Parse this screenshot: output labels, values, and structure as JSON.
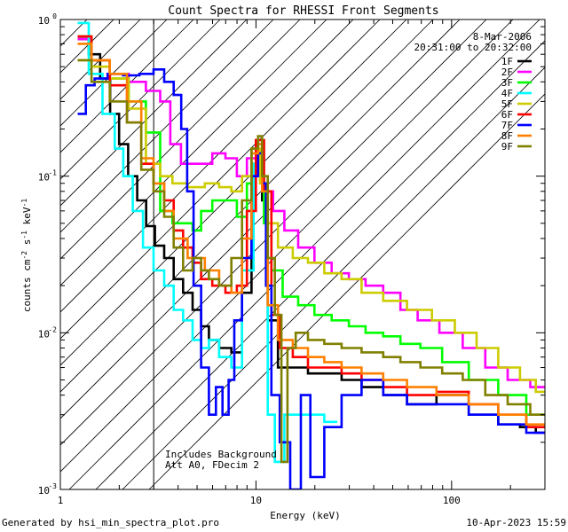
{
  "chart_data": {
    "type": "line",
    "title": "Count Spectra for RHESSI Front Segments",
    "xlabel": "Energy (keV)",
    "ylabel": "counts cm-2 s-1 keV-1",
    "x_scale": "log",
    "y_scale": "log",
    "xlim": [
      1,
      300
    ],
    "ylim": [
      0.001,
      1
    ],
    "x_ticks": [
      {
        "v": 1,
        "label": "1"
      },
      {
        "v": 10,
        "label": "10"
      },
      {
        "v": 100,
        "label": "100"
      }
    ],
    "y_ticks": [
      {
        "v": 1,
        "label": "10",
        "exp": "0"
      },
      {
        "v": 0.1,
        "label": "10",
        "exp": "-1"
      },
      {
        "v": 0.01,
        "label": "10",
        "exp": "-2"
      },
      {
        "v": 0.001,
        "label": "10",
        "exp": "-3"
      }
    ],
    "date": "8-Mar-2006",
    "time_range": "20:31:00 to 20:32:00",
    "annotation_lines": [
      "Includes Background",
      "Att A0, FDecim 2"
    ],
    "hatch_region": [
      1,
      3
    ],
    "legend_position": "top-right",
    "series": [
      {
        "name": "1F",
        "color": "#000000",
        "points": [
          [
            1.3,
            0.75
          ],
          [
            1.5,
            0.6
          ],
          [
            1.7,
            0.42
          ],
          [
            1.9,
            0.25
          ],
          [
            2.1,
            0.16
          ],
          [
            2.35,
            0.1
          ],
          [
            2.6,
            0.07
          ],
          [
            2.9,
            0.048
          ],
          [
            3.2,
            0.036
          ],
          [
            3.6,
            0.03
          ],
          [
            4.0,
            0.022
          ],
          [
            4.5,
            0.018
          ],
          [
            5.0,
            0.014
          ],
          [
            5.5,
            0.011
          ],
          [
            6.0,
            0.009
          ],
          [
            7.0,
            0.008
          ],
          [
            8.0,
            0.0075
          ],
          [
            9.0,
            0.018
          ],
          [
            10.0,
            0.12
          ],
          [
            10.5,
            0.16
          ],
          [
            11.0,
            0.07
          ],
          [
            12.0,
            0.012
          ],
          [
            14,
            0.006
          ],
          [
            17,
            0.006
          ],
          [
            20,
            0.0055
          ],
          [
            25,
            0.0055
          ],
          [
            30,
            0.005
          ],
          [
            40,
            0.0045
          ],
          [
            50,
            0.004
          ],
          [
            70,
            0.0035
          ],
          [
            100,
            0.004
          ],
          [
            150,
            0.003
          ],
          [
            200,
            0.0026
          ],
          [
            250,
            0.0025
          ],
          [
            290,
            0.0023
          ]
        ]
      },
      {
        "name": "2F",
        "color": "#ff00ff",
        "points": [
          [
            1.3,
            0.75
          ],
          [
            1.6,
            0.55
          ],
          [
            2.0,
            0.45
          ],
          [
            2.5,
            0.4
          ],
          [
            3.0,
            0.35
          ],
          [
            3.5,
            0.3
          ],
          [
            3.8,
            0.16
          ],
          [
            4.5,
            0.12
          ],
          [
            5.5,
            0.12
          ],
          [
            6.5,
            0.14
          ],
          [
            7.5,
            0.13
          ],
          [
            8.5,
            0.1
          ],
          [
            9.5,
            0.13
          ],
          [
            10.5,
            0.17
          ],
          [
            11.5,
            0.08
          ],
          [
            13,
            0.06
          ],
          [
            15,
            0.045
          ],
          [
            18,
            0.035
          ],
          [
            22,
            0.028
          ],
          [
            27,
            0.024
          ],
          [
            33,
            0.022
          ],
          [
            40,
            0.02
          ],
          [
            50,
            0.018
          ],
          [
            60,
            0.014
          ],
          [
            75,
            0.012
          ],
          [
            100,
            0.01
          ],
          [
            130,
            0.008
          ],
          [
            170,
            0.006
          ],
          [
            220,
            0.005
          ],
          [
            290,
            0.0045
          ]
        ]
      },
      {
        "name": "3F",
        "color": "#00ff00",
        "points": [
          [
            1.3,
            0.78
          ],
          [
            1.6,
            0.55
          ],
          [
            2.0,
            0.42
          ],
          [
            2.5,
            0.3
          ],
          [
            3.0,
            0.19
          ],
          [
            3.5,
            0.06
          ],
          [
            4.0,
            0.05
          ],
          [
            4.5,
            0.05
          ],
          [
            5.0,
            0.045
          ],
          [
            5.5,
            0.06
          ],
          [
            6.5,
            0.07
          ],
          [
            7.5,
            0.07
          ],
          [
            8.5,
            0.055
          ],
          [
            9.5,
            0.09
          ],
          [
            10.5,
            0.17
          ],
          [
            11.5,
            0.05
          ],
          [
            12.5,
            0.025
          ],
          [
            15,
            0.017
          ],
          [
            18,
            0.015
          ],
          [
            22,
            0.013
          ],
          [
            27,
            0.012
          ],
          [
            33,
            0.011
          ],
          [
            40,
            0.01
          ],
          [
            50,
            0.0095
          ],
          [
            60,
            0.0085
          ],
          [
            80,
            0.008
          ],
          [
            100,
            0.0065
          ],
          [
            150,
            0.005
          ],
          [
            200,
            0.004
          ],
          [
            290,
            0.003
          ]
        ]
      },
      {
        "name": "4F",
        "color": "#00ffff",
        "points": [
          [
            1.3,
            0.95
          ],
          [
            1.5,
            0.45
          ],
          [
            1.8,
            0.25
          ],
          [
            2.0,
            0.15
          ],
          [
            2.2,
            0.1
          ],
          [
            2.5,
            0.06
          ],
          [
            2.8,
            0.035
          ],
          [
            3.2,
            0.025
          ],
          [
            3.6,
            0.02
          ],
          [
            4.0,
            0.014
          ],
          [
            4.5,
            0.012
          ],
          [
            5.0,
            0.009
          ],
          [
            5.5,
            0.008
          ],
          [
            6.0,
            0.009
          ],
          [
            7.0,
            0.007
          ],
          [
            8.0,
            0.006
          ],
          [
            9.0,
            0.025
          ],
          [
            10.5,
            0.12
          ],
          [
            11.0,
            0.08
          ],
          [
            12.0,
            0.003
          ],
          [
            13.0,
            0.0015
          ],
          [
            15,
            0.003
          ],
          [
            18,
            0.003
          ],
          [
            20,
            0.003
          ],
          [
            25,
            0.0027
          ]
        ]
      },
      {
        "name": "5F",
        "color": "#cccc00",
        "points": [
          [
            1.3,
            0.55
          ],
          [
            1.6,
            0.5
          ],
          [
            2.0,
            0.42
          ],
          [
            2.5,
            0.27
          ],
          [
            3.0,
            0.12
          ],
          [
            3.5,
            0.1
          ],
          [
            4.0,
            0.09
          ],
          [
            5.0,
            0.085
          ],
          [
            6.0,
            0.09
          ],
          [
            7.0,
            0.085
          ],
          [
            8.0,
            0.08
          ],
          [
            9.0,
            0.1
          ],
          [
            10.0,
            0.15
          ],
          [
            11.0,
            0.09
          ],
          [
            12.0,
            0.05
          ],
          [
            14,
            0.035
          ],
          [
            17,
            0.03
          ],
          [
            20,
            0.028
          ],
          [
            25,
            0.024
          ],
          [
            30,
            0.022
          ],
          [
            40,
            0.018
          ],
          [
            50,
            0.016
          ],
          [
            70,
            0.014
          ],
          [
            90,
            0.012
          ],
          [
            120,
            0.01
          ],
          [
            150,
            0.008
          ],
          [
            200,
            0.006
          ],
          [
            250,
            0.005
          ],
          [
            290,
            0.0042
          ]
        ]
      },
      {
        "name": "6F",
        "color": "#ff0000",
        "points": [
          [
            1.3,
            0.78
          ],
          [
            1.6,
            0.55
          ],
          [
            2.0,
            0.38
          ],
          [
            2.4,
            0.22
          ],
          [
            2.8,
            0.12
          ],
          [
            3.2,
            0.09
          ],
          [
            3.6,
            0.07
          ],
          [
            4.0,
            0.045
          ],
          [
            4.5,
            0.035
          ],
          [
            5.0,
            0.028
          ],
          [
            5.5,
            0.022
          ],
          [
            6.5,
            0.02
          ],
          [
            7.5,
            0.018
          ],
          [
            8.5,
            0.02
          ],
          [
            9.5,
            0.06
          ],
          [
            10.5,
            0.17
          ],
          [
            11.5,
            0.08
          ],
          [
            12.5,
            0.013
          ],
          [
            14,
            0.008
          ],
          [
            17,
            0.007
          ],
          [
            20,
            0.006
          ],
          [
            25,
            0.006
          ],
          [
            30,
            0.0055
          ],
          [
            40,
            0.005
          ],
          [
            50,
            0.0045
          ],
          [
            70,
            0.004
          ],
          [
            100,
            0.0042
          ],
          [
            150,
            0.0035
          ],
          [
            200,
            0.003
          ],
          [
            290,
            0.0025
          ]
        ]
      },
      {
        "name": "7F",
        "color": "#0000ff",
        "points": [
          [
            1.3,
            0.25
          ],
          [
            1.4,
            0.38
          ],
          [
            1.6,
            0.42
          ],
          [
            1.9,
            0.45
          ],
          [
            2.3,
            0.44
          ],
          [
            2.8,
            0.45
          ],
          [
            3.2,
            0.48
          ],
          [
            3.6,
            0.4
          ],
          [
            4.0,
            0.33
          ],
          [
            4.3,
            0.2
          ],
          [
            4.6,
            0.08
          ],
          [
            5.0,
            0.02
          ],
          [
            5.5,
            0.006
          ],
          [
            6.0,
            0.003
          ],
          [
            6.5,
            0.0045
          ],
          [
            7.0,
            0.003
          ],
          [
            7.5,
            0.005
          ],
          [
            8.0,
            0.012
          ],
          [
            9.0,
            0.03
          ],
          [
            10.0,
            0.1
          ],
          [
            10.5,
            0.14
          ],
          [
            11.0,
            0.09
          ],
          [
            11.5,
            0.02
          ],
          [
            12.5,
            0.004
          ],
          [
            14,
            0.002
          ],
          [
            16,
            0.001
          ],
          [
            18,
            0.004
          ],
          [
            20,
            0.0012
          ],
          [
            25,
            0.0025
          ],
          [
            30,
            0.004
          ],
          [
            40,
            0.005
          ],
          [
            50,
            0.004
          ],
          [
            70,
            0.0035
          ],
          [
            100,
            0.0035
          ],
          [
            150,
            0.003
          ],
          [
            200,
            0.0026
          ],
          [
            290,
            0.0023
          ]
        ]
      },
      {
        "name": "8F",
        "color": "#ff8000",
        "points": [
          [
            1.3,
            0.7
          ],
          [
            1.6,
            0.55
          ],
          [
            2.0,
            0.45
          ],
          [
            2.4,
            0.3
          ],
          [
            2.8,
            0.13
          ],
          [
            3.2,
            0.09
          ],
          [
            3.6,
            0.06
          ],
          [
            4.0,
            0.04
          ],
          [
            5.0,
            0.03
          ],
          [
            6.0,
            0.025
          ],
          [
            7.0,
            0.02
          ],
          [
            8.0,
            0.018
          ],
          [
            9.0,
            0.04
          ],
          [
            10.0,
            0.14
          ],
          [
            10.5,
            0.16
          ],
          [
            11.0,
            0.08
          ],
          [
            12.0,
            0.015
          ],
          [
            14,
            0.009
          ],
          [
            17,
            0.008
          ],
          [
            20,
            0.007
          ],
          [
            25,
            0.0065
          ],
          [
            30,
            0.006
          ],
          [
            40,
            0.0055
          ],
          [
            50,
            0.005
          ],
          [
            70,
            0.0045
          ],
          [
            100,
            0.004
          ],
          [
            150,
            0.0035
          ],
          [
            200,
            0.003
          ],
          [
            290,
            0.0026
          ]
        ]
      },
      {
        "name": "9F",
        "color": "#808000",
        "points": [
          [
            1.3,
            0.55
          ],
          [
            1.6,
            0.4
          ],
          [
            2.0,
            0.3
          ],
          [
            2.4,
            0.22
          ],
          [
            2.8,
            0.11
          ],
          [
            3.2,
            0.08
          ],
          [
            3.6,
            0.055
          ],
          [
            4.0,
            0.035
          ],
          [
            4.5,
            0.025
          ],
          [
            5.0,
            0.03
          ],
          [
            5.5,
            0.025
          ],
          [
            6.0,
            0.022
          ],
          [
            7.0,
            0.02
          ],
          [
            8.0,
            0.03
          ],
          [
            9.0,
            0.07
          ],
          [
            10.0,
            0.15
          ],
          [
            10.5,
            0.18
          ],
          [
            11.0,
            0.1
          ],
          [
            12.0,
            0.03
          ],
          [
            13,
            0.013
          ],
          [
            14,
            0.0015
          ],
          [
            15,
            0.008
          ],
          [
            17,
            0.01
          ],
          [
            20,
            0.009
          ],
          [
            25,
            0.0085
          ],
          [
            30,
            0.008
          ],
          [
            40,
            0.0075
          ],
          [
            50,
            0.007
          ],
          [
            60,
            0.0065
          ],
          [
            80,
            0.006
          ],
          [
            100,
            0.0055
          ],
          [
            130,
            0.005
          ],
          [
            170,
            0.004
          ],
          [
            220,
            0.0035
          ],
          [
            290,
            0.003
          ]
        ]
      }
    ]
  },
  "footer": {
    "left": "Generated by hsi_min_spectra_plot.pro",
    "right": "10-Apr-2023 15:59"
  }
}
